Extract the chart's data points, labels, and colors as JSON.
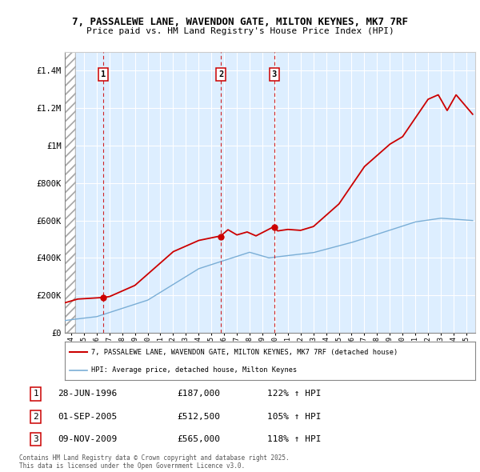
{
  "title1": "7, PASSALEWE LANE, WAVENDON GATE, MILTON KEYNES, MK7 7RF",
  "title2": "Price paid vs. HM Land Registry's House Price Index (HPI)",
  "sale_prices": [
    187000,
    512500,
    565000
  ],
  "sale_labels": [
    "1",
    "2",
    "3"
  ],
  "red_color": "#cc0000",
  "blue_color": "#7aaed6",
  "bg_color": "#ddeeff",
  "legend_line1": "7, PASSALEWE LANE, WAVENDON GATE, MILTON KEYNES, MK7 7RF (detached house)",
  "legend_line2": "HPI: Average price, detached house, Milton Keynes",
  "footnote": "Contains HM Land Registry data © Crown copyright and database right 2025.\nThis data is licensed under the Open Government Licence v3.0.",
  "ylim": [
    0,
    1500000
  ],
  "yticks": [
    0,
    200000,
    400000,
    600000,
    800000,
    1000000,
    1200000,
    1400000
  ],
  "ytick_labels": [
    "£0",
    "£200K",
    "£400K",
    "£600K",
    "£800K",
    "£1M",
    "£1.2M",
    "£1.4M"
  ],
  "xlim_start": 1993.5,
  "xlim_end": 2025.7,
  "table_entries": [
    [
      "1",
      "28-JUN-1996",
      "£187,000",
      "122% ↑ HPI"
    ],
    [
      "2",
      "01-SEP-2005",
      "£512,500",
      "105% ↑ HPI"
    ],
    [
      "3",
      "09-NOV-2009",
      "£565,000",
      "118% ↑ HPI"
    ]
  ]
}
